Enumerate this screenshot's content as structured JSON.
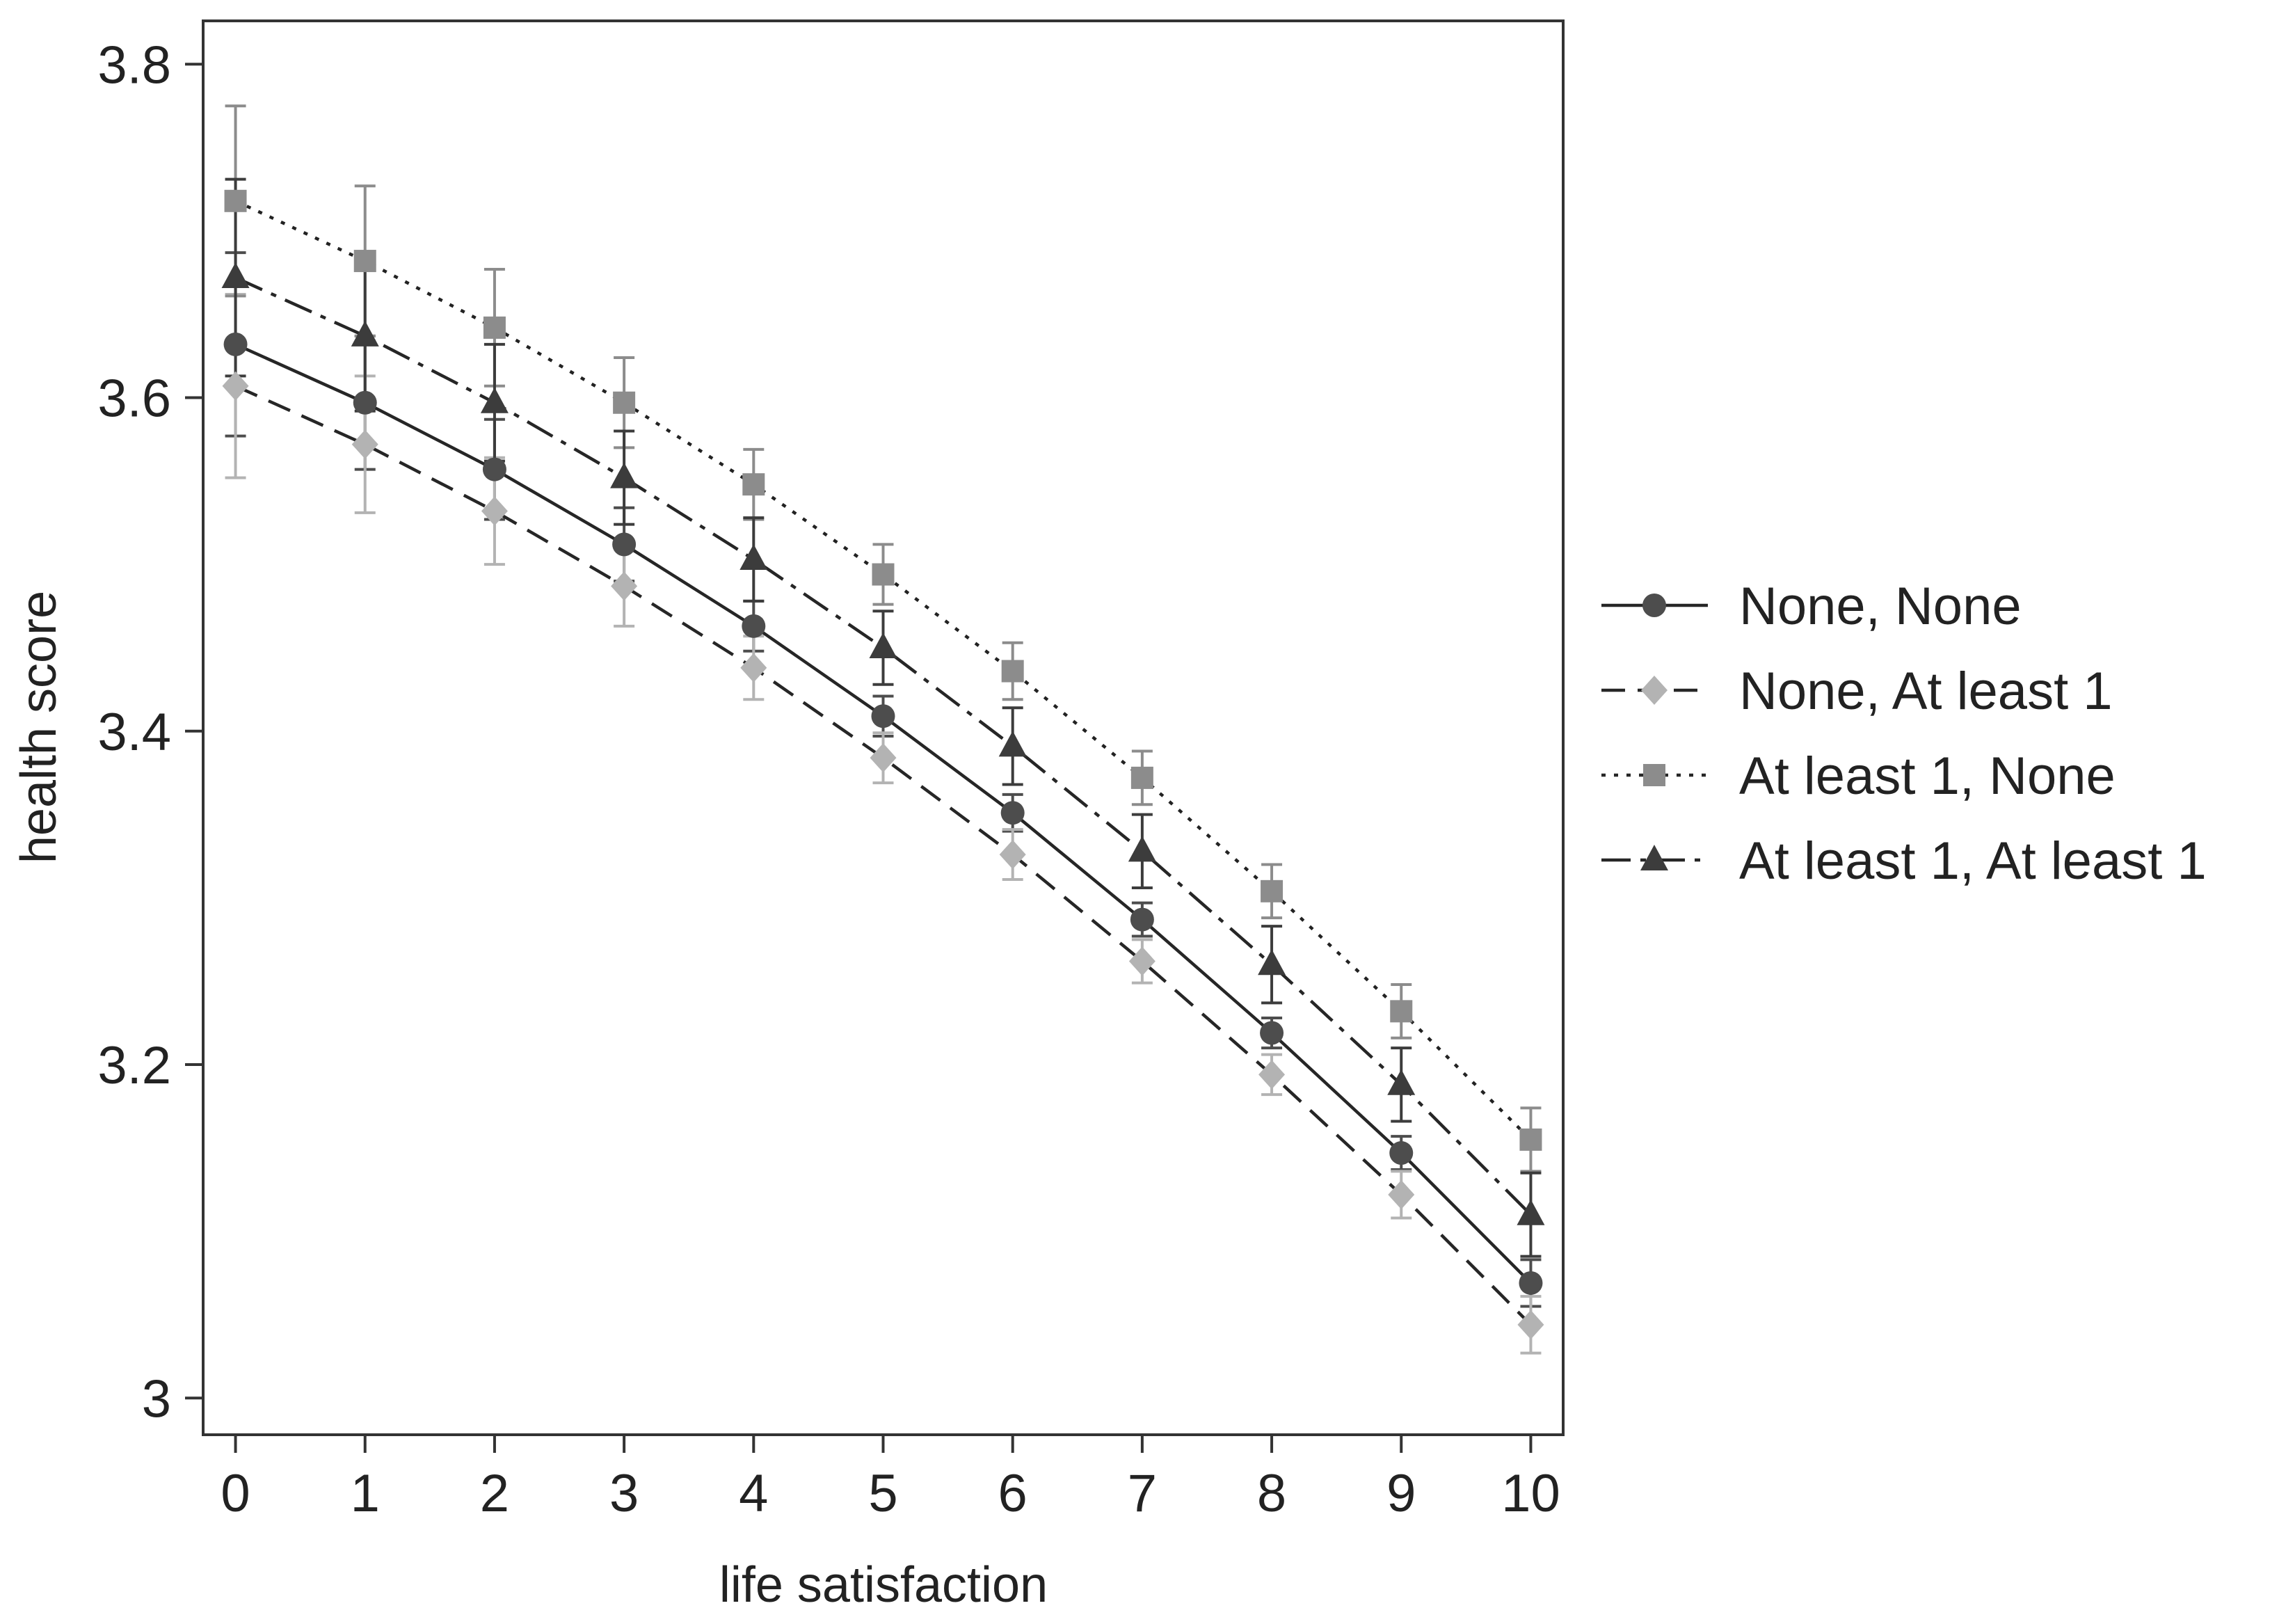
{
  "chart_data": {
    "type": "line",
    "title": "",
    "xlabel": "life satisfaction",
    "ylabel": "health score",
    "x": [
      0,
      1,
      2,
      3,
      4,
      5,
      6,
      7,
      8,
      9,
      10
    ],
    "xticks": [
      "0",
      "1",
      "2",
      "3",
      "4",
      "5",
      "6",
      "7",
      "8",
      "9",
      "10"
    ],
    "yticks": [
      "3",
      "3.2",
      "3.4",
      "3.6",
      "3.8"
    ],
    "xlim": [
      -0.25,
      10.25
    ],
    "ylim": [
      2.978,
      3.826
    ],
    "grid": false,
    "error_bars": true,
    "legend_position": "right",
    "series": [
      {
        "name": "None, None",
        "values": [
          3.632,
          3.597,
          3.557,
          3.512,
          3.463,
          3.409,
          3.351,
          3.287,
          3.219,
          3.147,
          3.069
        ],
        "err_low": [
          3.577,
          3.557,
          3.527,
          3.49,
          3.448,
          3.397,
          3.34,
          3.277,
          3.21,
          3.137,
          3.055
        ],
        "err_high": [
          3.687,
          3.637,
          3.587,
          3.534,
          3.478,
          3.421,
          3.362,
          3.297,
          3.228,
          3.157,
          3.083
        ],
        "color": "#4d4d4d",
        "marker": "circle",
        "dash": "solid"
      },
      {
        "name": "None, At least 1",
        "values": [
          3.607,
          3.572,
          3.532,
          3.487,
          3.438,
          3.384,
          3.326,
          3.262,
          3.194,
          3.122,
          3.044
        ],
        "err_low": [
          3.552,
          3.531,
          3.5,
          3.463,
          3.419,
          3.369,
          3.311,
          3.249,
          3.182,
          3.108,
          3.027
        ],
        "err_high": [
          3.662,
          3.613,
          3.564,
          3.511,
          3.457,
          3.399,
          3.341,
          3.275,
          3.206,
          3.136,
          3.061
        ],
        "color": "#b3b3b3",
        "marker": "diamond",
        "dash": "dash"
      },
      {
        "name": "At least 1, None",
        "values": [
          3.718,
          3.682,
          3.642,
          3.597,
          3.548,
          3.494,
          3.436,
          3.372,
          3.304,
          3.232,
          3.155
        ],
        "err_low": [
          3.661,
          3.637,
          3.607,
          3.57,
          3.527,
          3.476,
          3.419,
          3.356,
          3.288,
          3.216,
          3.136
        ],
        "err_high": [
          3.775,
          3.727,
          3.677,
          3.624,
          3.569,
          3.512,
          3.453,
          3.388,
          3.32,
          3.248,
          3.174
        ],
        "color": "#8c8c8c",
        "marker": "square",
        "dash": "dot"
      },
      {
        "name": "At least 1, At least 1",
        "values": [
          3.672,
          3.637,
          3.597,
          3.552,
          3.503,
          3.45,
          3.391,
          3.328,
          3.26,
          3.188,
          3.11
        ],
        "err_low": [
          3.613,
          3.592,
          3.562,
          3.524,
          3.478,
          3.428,
          3.368,
          3.306,
          3.237,
          3.166,
          3.085
        ],
        "err_high": [
          3.731,
          3.682,
          3.632,
          3.58,
          3.528,
          3.472,
          3.414,
          3.35,
          3.283,
          3.21,
          3.135
        ],
        "color": "#3c3c3c",
        "marker": "triangle",
        "dash": "dashdot"
      }
    ]
  }
}
